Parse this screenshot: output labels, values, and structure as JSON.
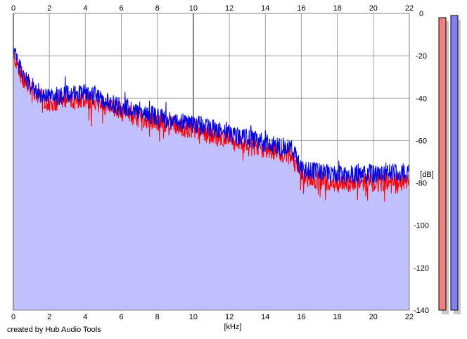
{
  "app": {
    "credit": "created by Hub Audio Tools"
  },
  "colors": {
    "fill": "#c0c0ff",
    "blue_channel": "#0000e0",
    "red_channel": "#ff0000",
    "grid": "#a0a0a0",
    "grid_major": "#808080",
    "meter_left": "#f08080",
    "meter_right": "#8080f0"
  },
  "chart_data": {
    "type": "area",
    "xlabel": "[kHz]",
    "ylabel": "[dB]",
    "xlim": [
      0,
      22
    ],
    "ylim": [
      -140,
      0
    ],
    "x_ticks": [
      "0",
      "2",
      "4",
      "6",
      "8",
      "10",
      "12",
      "14",
      "16",
      "18",
      "20",
      "22"
    ],
    "y_ticks": [
      "0",
      "-20",
      "-40",
      "-60",
      "-80",
      "-100",
      "-120",
      "-140"
    ],
    "grid": true,
    "x": [
      0,
      0.2,
      0.5,
      1,
      1.5,
      2,
      3,
      4,
      5,
      6,
      7,
      8,
      9,
      10,
      11,
      12,
      13,
      14,
      15,
      15.5,
      16,
      17,
      18,
      19,
      20,
      21,
      22
    ],
    "series": [
      {
        "values": [
          -19,
          -24,
          -30,
          -36,
          -40,
          -42,
          -41,
          -40,
          -43,
          -46,
          -49,
          -51,
          -53,
          -55,
          -57,
          -60,
          -63,
          -64,
          -66,
          -68,
          -77,
          -79,
          -80,
          -80,
          -80,
          -79,
          -80
        ]
      },
      {
        "values": [
          -18,
          -22,
          -28,
          -34,
          -38,
          -40,
          -38,
          -37,
          -41,
          -44,
          -46,
          -49,
          -51,
          -52,
          -54,
          -57,
          -59,
          -61,
          -63,
          -64,
          -74,
          -75,
          -76,
          -76,
          -76,
          -75,
          -75
        ]
      }
    ],
    "meters": {
      "left": -2,
      "right": -1
    }
  }
}
